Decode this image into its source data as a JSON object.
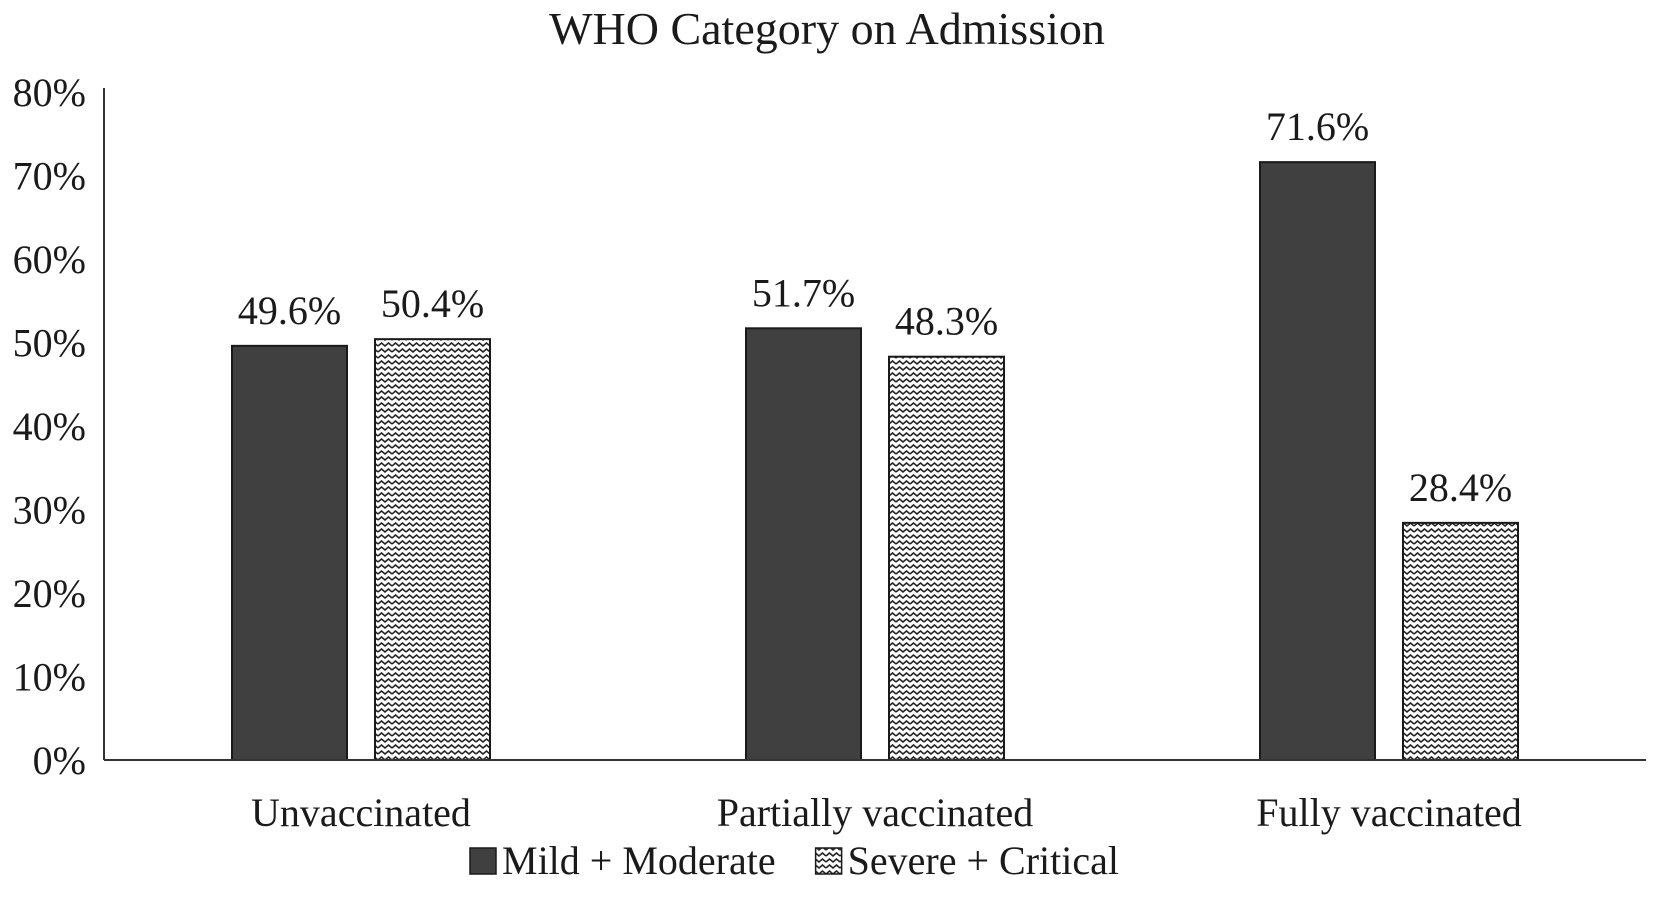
{
  "chart_data": {
    "type": "bar",
    "title": "WHO Category on Admission",
    "xlabel": "",
    "ylabel": "",
    "categories": [
      "Unvaccinated",
      "Partially vaccinated",
      "Fully vaccinated"
    ],
    "series": [
      {
        "name": "Mild + Moderate",
        "values": [
          49.6,
          51.7,
          71.6
        ],
        "labels": [
          "49.6%",
          "51.7%",
          "71.6%"
        ],
        "fill": "solid",
        "color": "#404040"
      },
      {
        "name": "Severe + Critical",
        "values": [
          50.4,
          48.3,
          28.4
        ],
        "labels": [
          "50.4%",
          "48.3%",
          "28.4%"
        ],
        "fill": "zigzag",
        "color": "#ffffff"
      }
    ],
    "ylim": [
      0,
      80
    ],
    "yticks": [
      0,
      10,
      20,
      30,
      40,
      50,
      60,
      70,
      80
    ],
    "ytick_labels": [
      "0%",
      "10%",
      "20%",
      "30%",
      "40%",
      "50%",
      "60%",
      "70%",
      "80%"
    ],
    "grid": false,
    "legend_position": "bottom"
  }
}
